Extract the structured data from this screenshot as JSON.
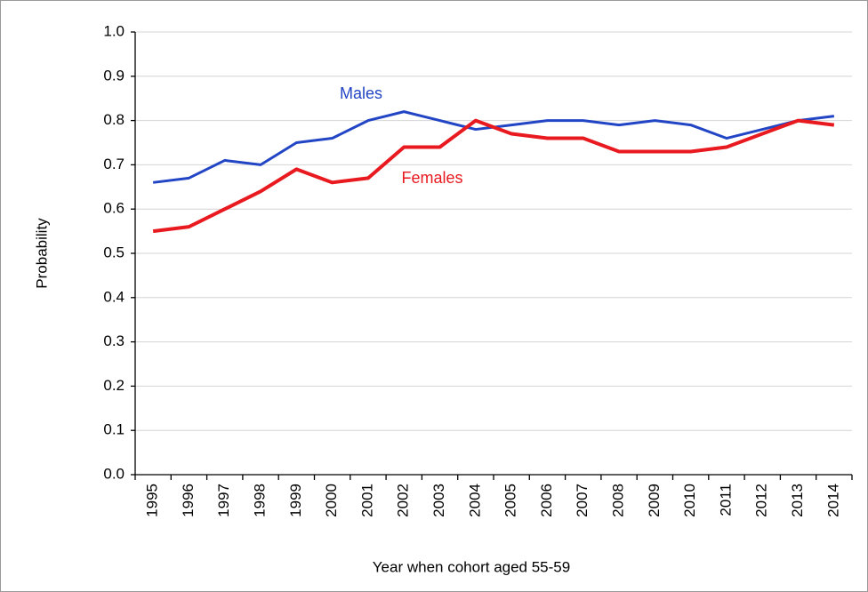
{
  "chart_data": {
    "type": "line",
    "categories": [
      "1995",
      "1996",
      "1997",
      "1998",
      "1999",
      "2000",
      "2001",
      "2002",
      "2003",
      "2004",
      "2005",
      "2006",
      "2007",
      "2008",
      "2009",
      "2010",
      "2011",
      "2012",
      "2013",
      "2014"
    ],
    "series": [
      {
        "name": "Males",
        "color": "#2145c4",
        "values": [
          0.66,
          0.67,
          0.71,
          0.7,
          0.75,
          0.76,
          0.8,
          0.82,
          0.8,
          0.78,
          0.79,
          0.8,
          0.8,
          0.79,
          0.8,
          0.79,
          0.76,
          0.78,
          0.8,
          0.81
        ]
      },
      {
        "name": "Females",
        "color": "#e8191f",
        "values": [
          0.55,
          0.56,
          0.6,
          0.64,
          0.69,
          0.66,
          0.67,
          0.74,
          0.74,
          0.8,
          0.77,
          0.76,
          0.76,
          0.73,
          0.73,
          0.73,
          0.74,
          0.77,
          0.8,
          0.79
        ]
      }
    ],
    "xlabel": "Year when cohort aged 55-59",
    "ylabel": "Probability",
    "ylim": [
      0,
      1
    ],
    "yticks": [
      {
        "value": 0,
        "label": "0.0"
      },
      0.1,
      0.2,
      0.3,
      0.4,
      0.5,
      0.6,
      0.7,
      0.8,
      0.9,
      {
        "value": 1,
        "label": "1.0"
      }
    ],
    "grid": true
  }
}
